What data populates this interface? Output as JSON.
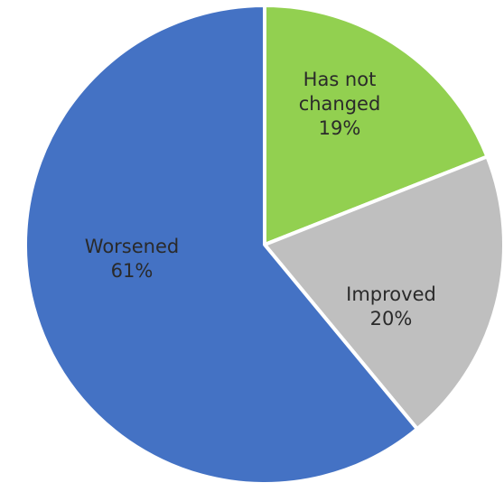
{
  "chart_data": {
    "type": "pie",
    "title": "",
    "slices": [
      {
        "label": "Has not changed",
        "label_lines": [
          "Has not",
          "changed"
        ],
        "value": 19,
        "value_label": "19%",
        "color": "#92d050"
      },
      {
        "label": "Improved",
        "label_lines": [
          "Improved"
        ],
        "value": 20,
        "value_label": "20%",
        "color": "#bfbfbf"
      },
      {
        "label": "Worsened",
        "label_lines": [
          "Worsened"
        ],
        "value": 61,
        "value_label": "61%",
        "color": "#4472c4"
      }
    ],
    "start_angle": "12 o'clock",
    "direction": "clockwise",
    "legend": "none",
    "slice_border_color": "#ffffff"
  }
}
